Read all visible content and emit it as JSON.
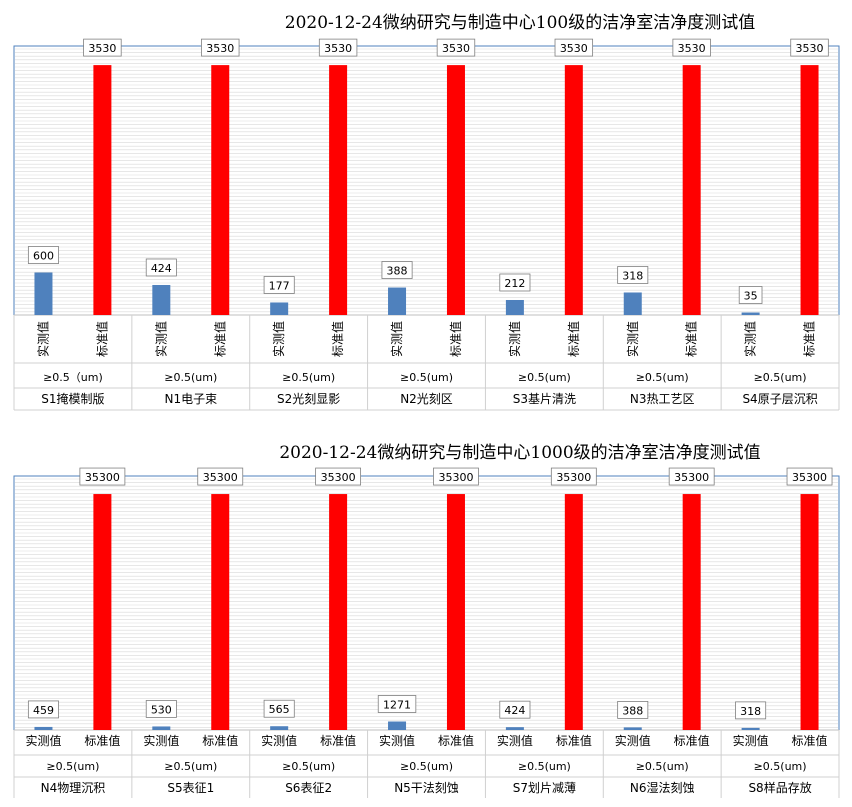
{
  "chart_data": [
    {
      "type": "bar",
      "title": "2020-12-24微纳研究与制造中心100级的洁净室洁净度测试值",
      "series_labels": [
        "实测值",
        "标准值"
      ],
      "ylim": [
        0,
        3800
      ],
      "grid": true,
      "legend": "none",
      "categories": [
        {
          "size": "≥0.5（um)",
          "name": "S1掩模制版",
          "measured": 600,
          "standard": 3530
        },
        {
          "size": "≥0.5(um)",
          "name": "N1电子束",
          "measured": 424,
          "standard": 3530
        },
        {
          "size": "≥0.5(um)",
          "name": "S2光刻显影",
          "measured": 177,
          "standard": 3530
        },
        {
          "size": "≥0.5(um)",
          "name": "N2光刻区",
          "measured": 388,
          "standard": 3530
        },
        {
          "size": "≥0.5(um)",
          "name": "S3基片清洗",
          "measured": 212,
          "standard": 3530
        },
        {
          "size": "≥0.5(um)",
          "name": "N3热工艺区",
          "measured": 318,
          "standard": 3530
        },
        {
          "size": "≥0.5(um)",
          "name": "S4原子层沉积",
          "measured": 35,
          "standard": 3530
        }
      ],
      "colors": {
        "measured": "#4f81bd",
        "standard": "#ff0000",
        "grid": "#d9d9d9",
        "border": "#4f81bd"
      }
    },
    {
      "type": "bar",
      "title": "2020-12-24微纳研究与制造中心1000级的洁净室洁净度测试值",
      "series_labels": [
        "实测值",
        "标准值"
      ],
      "ylim": [
        0,
        38000
      ],
      "grid": true,
      "legend": "none",
      "categories": [
        {
          "size": "≥0.5(um)",
          "name": "N4物理沉积",
          "measured": 459,
          "standard": 35300
        },
        {
          "size": "≥0.5(um)",
          "name": "S5表征1",
          "measured": 530,
          "standard": 35300
        },
        {
          "size": "≥0.5(um)",
          "name": "S6表征2",
          "measured": 565,
          "standard": 35300
        },
        {
          "size": "≥0.5(um)",
          "name": "N5干法刻蚀",
          "measured": 1271,
          "standard": 35300
        },
        {
          "size": "≥0.5(um)",
          "name": "S7划片减薄",
          "measured": 424,
          "standard": 35300
        },
        {
          "size": "≥0.5(um)",
          "name": "N6湿法刻蚀",
          "measured": 388,
          "standard": 35300
        },
        {
          "size": "≥0.5(um)",
          "name": "S8样品存放",
          "measured": 318,
          "standard": 35300
        }
      ],
      "colors": {
        "measured": "#4f81bd",
        "standard": "#ff0000",
        "grid": "#d9d9d9",
        "border": "#4f81bd"
      }
    }
  ]
}
